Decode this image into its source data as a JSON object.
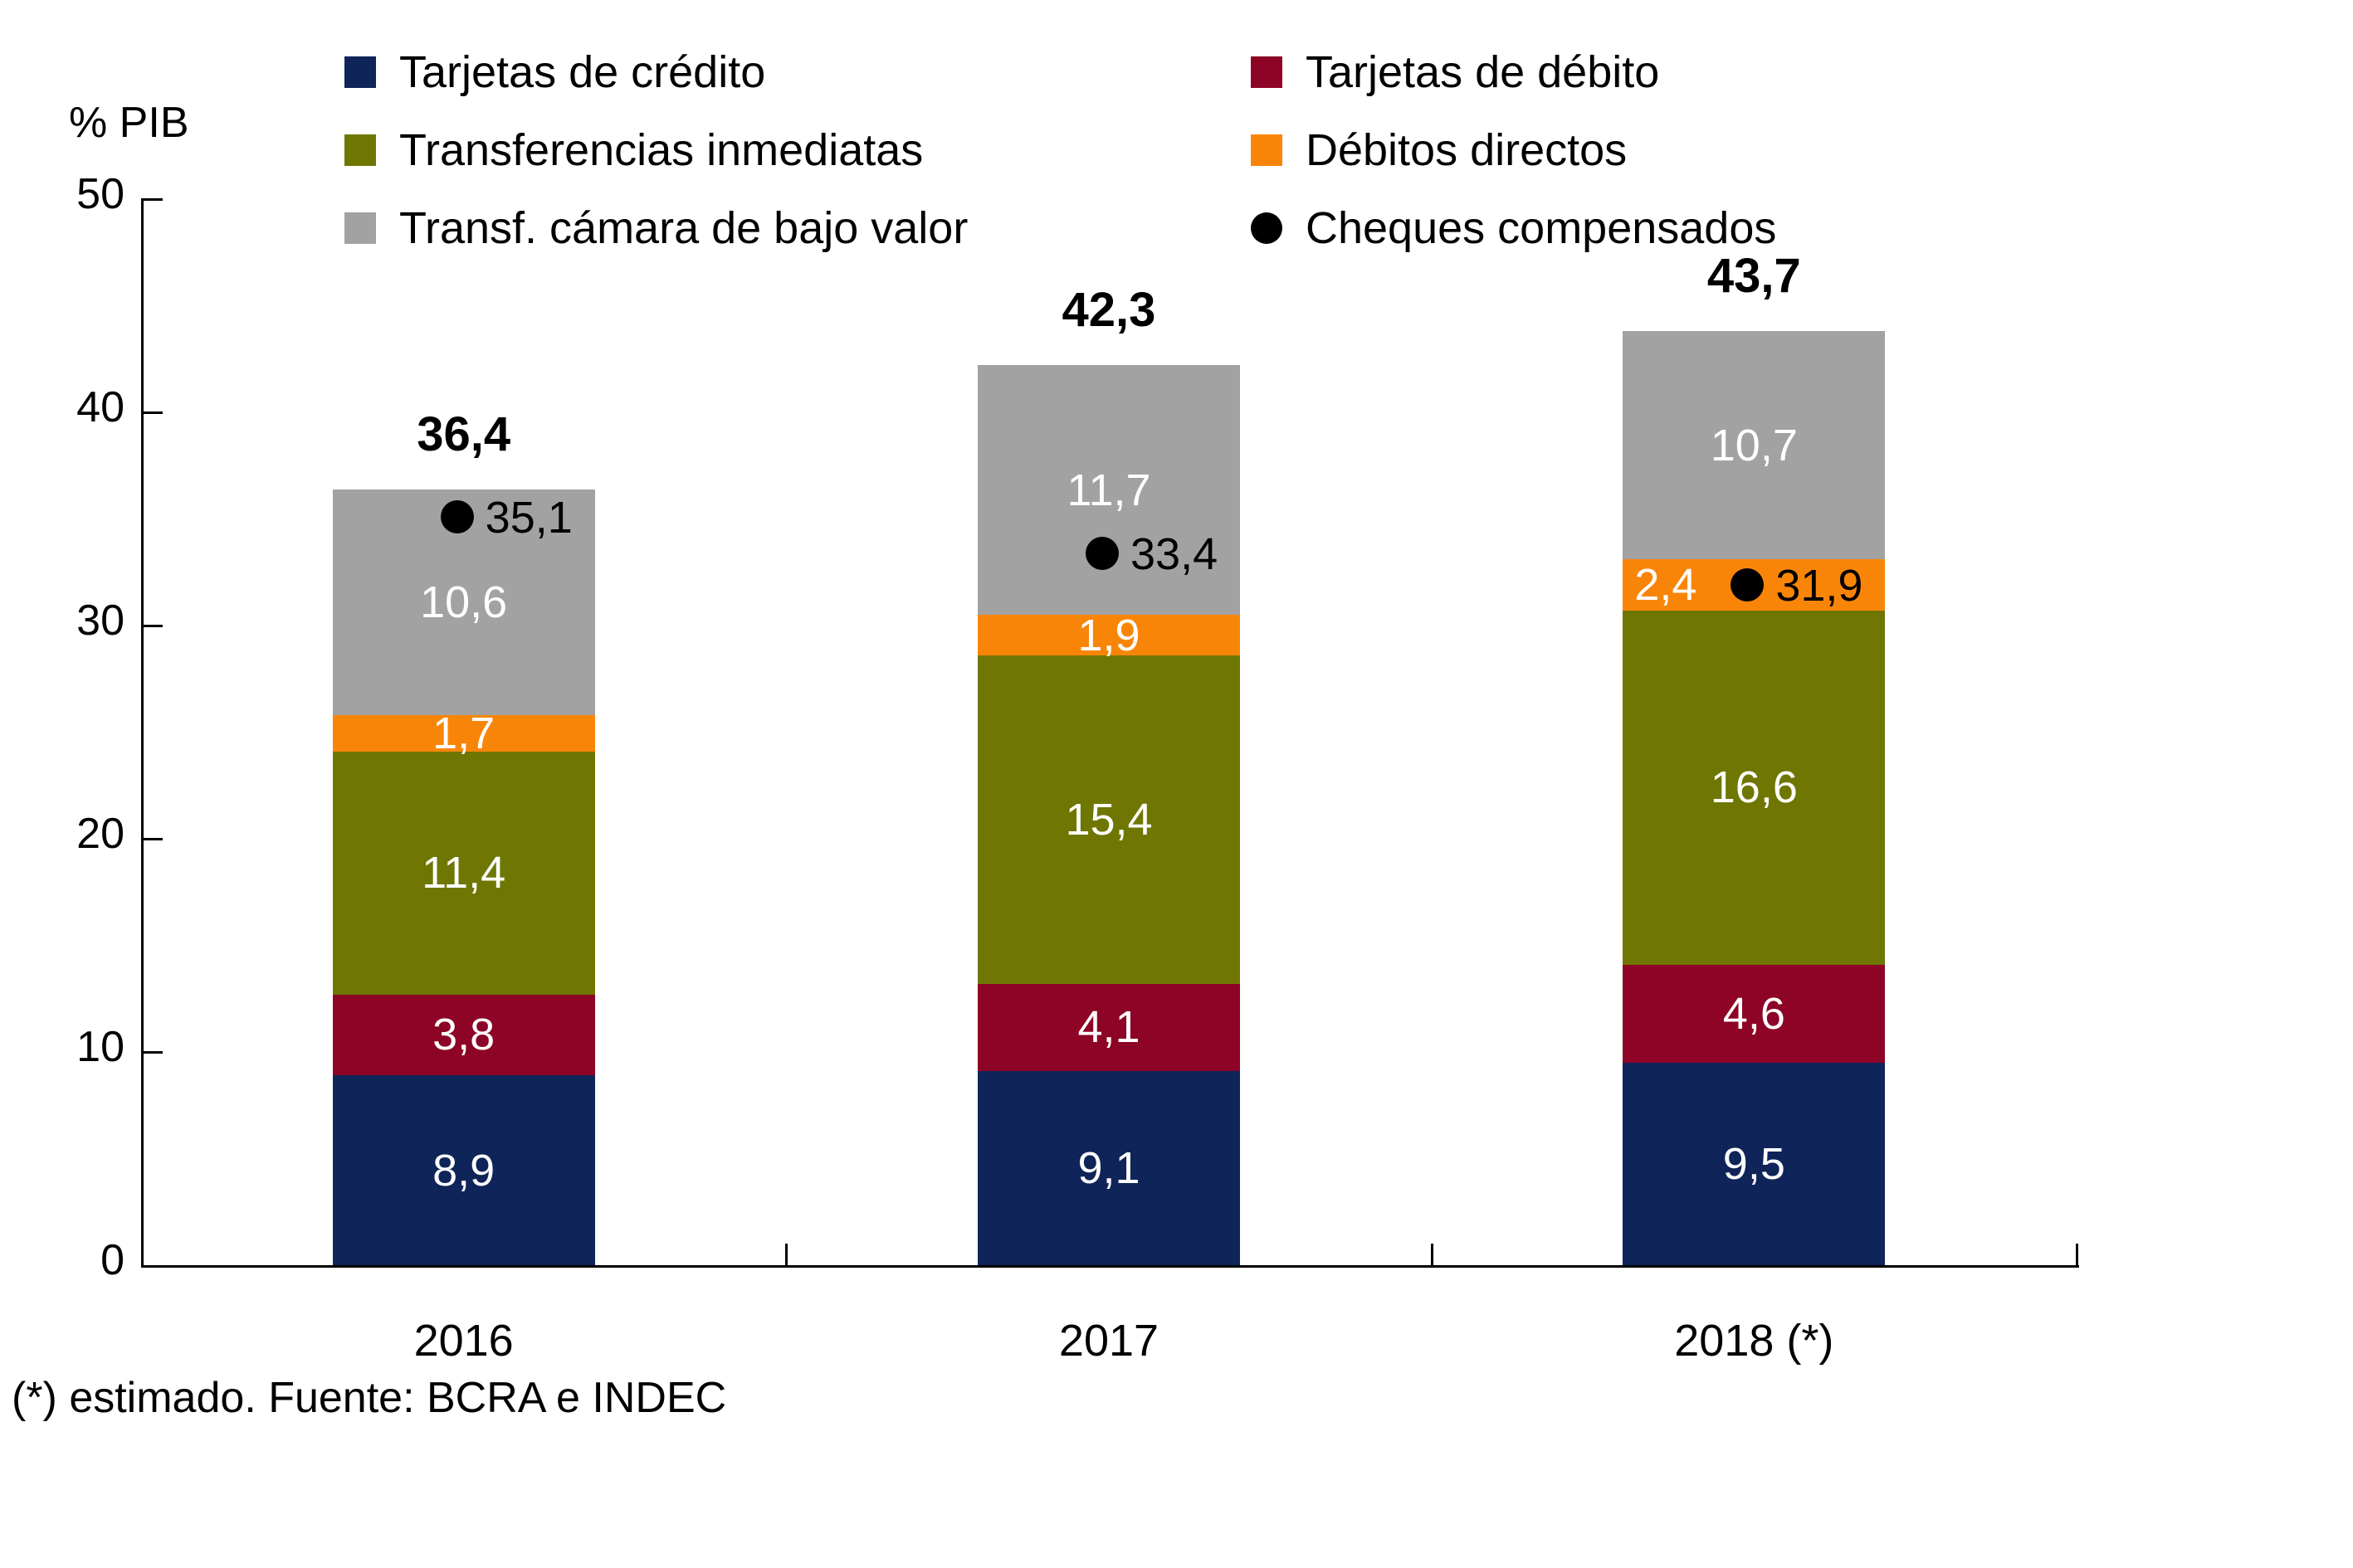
{
  "header": {
    "axis_title": "% PIB"
  },
  "legend": {
    "items": [
      {
        "label": "Tarjetas de crédito",
        "color": "#0F2459",
        "marker": "square"
      },
      {
        "label": "Tarjetas de débito",
        "color": "#8D0426",
        "marker": "square"
      },
      {
        "label": "Transferencias inmediatas",
        "color": "#6F7702",
        "marker": "square"
      },
      {
        "label": "Débitos directos",
        "color": "#F98508",
        "marker": "square"
      },
      {
        "label": "Transf. cámara de bajo valor",
        "color": "#A2A2A2",
        "marker": "square"
      },
      {
        "label": "Cheques compensados",
        "color": "#000000",
        "marker": "circle"
      }
    ]
  },
  "chart_data": {
    "type": "bar",
    "stacked": true,
    "title": "",
    "xlabel": "",
    "ylabel": "% PIB",
    "ylim": [
      0,
      50
    ],
    "yticks": [
      0,
      10,
      20,
      30,
      40,
      50
    ],
    "grid": false,
    "legend_position": "top",
    "categories": [
      "2016",
      "2017",
      "2018 (*)"
    ],
    "series": [
      {
        "name": "Tarjetas de crédito",
        "color": "#0F2459",
        "values": [
          8.9,
          9.1,
          9.5
        ],
        "labels": [
          "8,9",
          "9,1",
          "9,5"
        ]
      },
      {
        "name": "Tarjetas de débito",
        "color": "#8D0426",
        "values": [
          3.8,
          4.1,
          4.6
        ],
        "labels": [
          "3,8",
          "4,1",
          "4,6"
        ]
      },
      {
        "name": "Transferencias inmediatas",
        "color": "#6F7702",
        "values": [
          11.4,
          15.4,
          16.6
        ],
        "labels": [
          "11,4",
          "15,4",
          "16,6"
        ]
      },
      {
        "name": "Débitos directos",
        "color": "#F98508",
        "values": [
          1.7,
          1.9,
          2.4
        ],
        "labels": [
          "1,7",
          "1,9",
          "2,4"
        ]
      },
      {
        "name": "Transf. cámara de bajo valor",
        "color": "#A2A2A2",
        "values": [
          10.6,
          11.7,
          10.7
        ],
        "labels": [
          "10,6",
          "11,7",
          "10,7"
        ]
      }
    ],
    "totals": {
      "values": [
        36.4,
        42.3,
        43.7
      ],
      "labels": [
        "36,4",
        "42,3",
        "43,7"
      ]
    },
    "markers": {
      "name": "Cheques compensados",
      "color": "#000000",
      "values": [
        35.1,
        33.4,
        31.9
      ],
      "labels": [
        "35,1",
        "33,4",
        "31,9"
      ]
    }
  },
  "footer": {
    "note": "(*) estimado. Fuente: BCRA e INDEC"
  }
}
